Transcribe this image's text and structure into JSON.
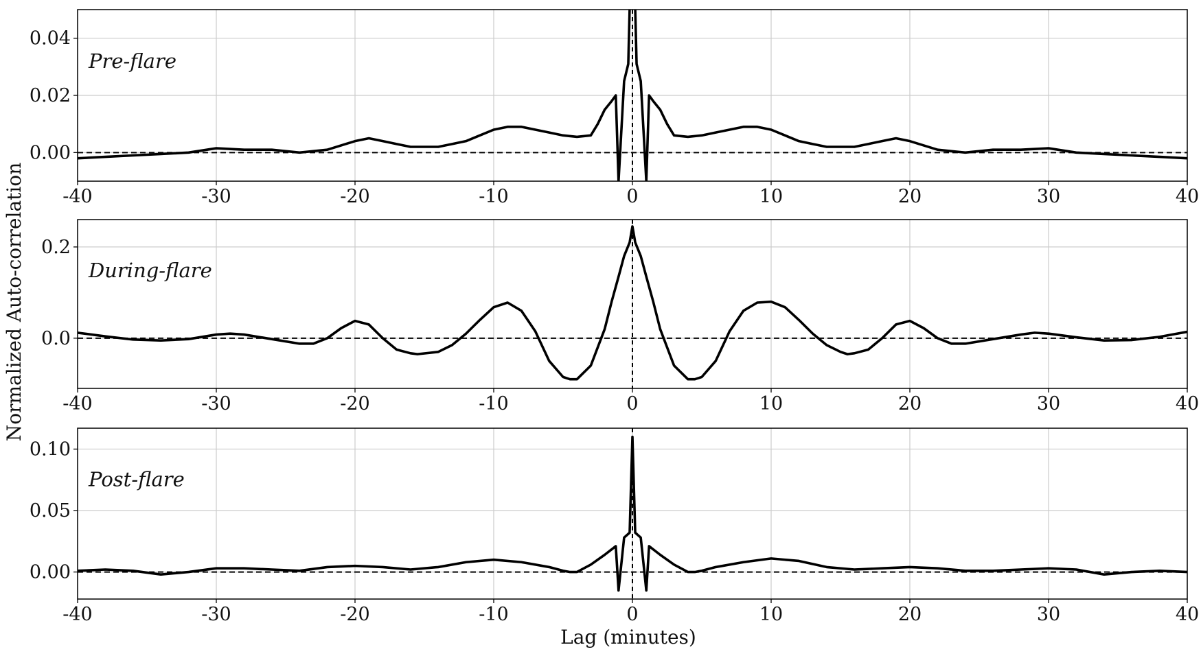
{
  "chart_data": [
    {
      "type": "line",
      "panel_label": "Pre-flare",
      "xlim": [
        -40,
        40
      ],
      "ylim": [
        -0.01,
        0.05
      ],
      "xticks": [
        -40,
        -30,
        -20,
        -10,
        0,
        10,
        20,
        30,
        40
      ],
      "xtick_labels": [
        "-40",
        "-30",
        "-20",
        "-10",
        "0",
        "10",
        "20",
        "30",
        "40"
      ],
      "yticks": [
        0.0,
        0.02,
        0.04
      ],
      "ytick_labels": [
        "0.00",
        "0.02",
        "0.04"
      ],
      "grid": true,
      "reference_lines": {
        "y": 0,
        "x": 0,
        "style": "dashed"
      },
      "series": [
        {
          "color": "#000000",
          "x": [
            -40,
            -38,
            -36,
            -34,
            -32,
            -30,
            -28,
            -26,
            -24,
            -22,
            -20,
            -19,
            -18,
            -17,
            -16,
            -15,
            -14,
            -13,
            -12,
            -11,
            -10,
            -9,
            -8,
            -7,
            -6,
            -5,
            -4,
            -3,
            -2.5,
            -2,
            -1.5,
            -1.2,
            -1.0,
            -0.6,
            -0.3,
            -0.15,
            0,
            0.15,
            0.3,
            0.6,
            1.0,
            1.2,
            1.5,
            2,
            2.5,
            3,
            4,
            5,
            6,
            7,
            8,
            9,
            10,
            11,
            12,
            13,
            14,
            15,
            16,
            17,
            18,
            19,
            20,
            22,
            24,
            26,
            28,
            30,
            32,
            34,
            36,
            38,
            40
          ],
          "y": [
            -0.002,
            -0.0015,
            -0.001,
            -0.0005,
            0.0,
            0.0015,
            0.001,
            0.001,
            0.0,
            0.001,
            0.004,
            0.005,
            0.004,
            0.003,
            0.002,
            0.002,
            0.002,
            0.003,
            0.004,
            0.006,
            0.008,
            0.009,
            0.009,
            0.008,
            0.007,
            0.006,
            0.0055,
            0.006,
            0.01,
            0.015,
            0.018,
            0.02,
            -0.01,
            0.025,
            0.031,
            0.06,
            0.085,
            0.06,
            0.031,
            0.025,
            -0.01,
            0.02,
            0.018,
            0.015,
            0.01,
            0.006,
            0.0055,
            0.006,
            0.007,
            0.008,
            0.009,
            0.009,
            0.008,
            0.006,
            0.004,
            0.003,
            0.002,
            0.002,
            0.002,
            0.003,
            0.004,
            0.005,
            0.004,
            0.001,
            0.0,
            0.001,
            0.001,
            0.0015,
            0.0,
            -0.0005,
            -0.001,
            -0.0015,
            -0.002
          ]
        }
      ]
    },
    {
      "type": "line",
      "panel_label": "During-flare",
      "xlim": [
        -40,
        40
      ],
      "ylim": [
        -0.11,
        0.26
      ],
      "xticks": [
        -40,
        -30,
        -20,
        -10,
        0,
        10,
        20,
        30,
        40
      ],
      "xtick_labels": [
        "-40",
        "-30",
        "-20",
        "-10",
        "0",
        "10",
        "20",
        "30",
        "40"
      ],
      "yticks": [
        0.0,
        0.2
      ],
      "ytick_labels": [
        "0.0",
        "0.2"
      ],
      "grid": true,
      "reference_lines": {
        "y": 0,
        "x": 0,
        "style": "dashed"
      },
      "series": [
        {
          "color": "#000000",
          "x": [
            -40,
            -38,
            -36,
            -34,
            -32,
            -30,
            -29,
            -28,
            -26,
            -24,
            -23,
            -22,
            -21,
            -20,
            -19,
            -18,
            -17,
            -16,
            -15.5,
            -14,
            -13,
            -12,
            -11,
            -10,
            -9,
            -8,
            -7,
            -6,
            -5,
            -4.5,
            -4,
            -3,
            -2,
            -1.5,
            -1,
            -0.6,
            -0.2,
            0,
            0.2,
            0.6,
            1,
            1.5,
            2,
            3,
            4,
            4.5,
            5,
            6,
            7,
            8,
            9,
            10,
            11,
            12,
            13,
            14,
            15,
            15.5,
            16,
            17,
            18,
            19,
            20,
            21,
            22,
            23,
            24,
            26,
            28,
            29,
            30,
            32,
            34,
            36,
            38,
            40
          ],
          "y": [
            0.012,
            0.004,
            -0.003,
            -0.005,
            -0.002,
            0.008,
            0.01,
            0.008,
            -0.002,
            -0.012,
            -0.012,
            0.0,
            0.022,
            0.038,
            0.03,
            0.0,
            -0.025,
            -0.033,
            -0.035,
            -0.03,
            -0.015,
            0.01,
            0.04,
            0.068,
            0.078,
            0.06,
            0.015,
            -0.05,
            -0.085,
            -0.09,
            -0.09,
            -0.06,
            0.02,
            0.08,
            0.135,
            0.18,
            0.21,
            0.245,
            0.21,
            0.18,
            0.135,
            0.08,
            0.02,
            -0.06,
            -0.09,
            -0.09,
            -0.085,
            -0.05,
            0.015,
            0.06,
            0.078,
            0.08,
            0.068,
            0.04,
            0.01,
            -0.015,
            -0.03,
            -0.035,
            -0.033,
            -0.025,
            0.0,
            0.03,
            0.038,
            0.022,
            0.0,
            -0.012,
            -0.012,
            -0.002,
            0.008,
            0.012,
            0.01,
            0.002,
            -0.005,
            -0.004,
            0.003,
            0.014
          ]
        }
      ]
    },
    {
      "type": "line",
      "panel_label": "Post-flare",
      "xlim": [
        -40,
        40
      ],
      "ylim": [
        -0.022,
        0.117
      ],
      "xticks": [
        -40,
        -30,
        -20,
        -10,
        0,
        10,
        20,
        30,
        40
      ],
      "xtick_labels": [
        "-40",
        "-30",
        "-20",
        "-10",
        "0",
        "10",
        "20",
        "30",
        "40"
      ],
      "yticks": [
        0.0,
        0.05,
        0.1
      ],
      "ytick_labels": [
        "0.00",
        "0.05",
        "0.10"
      ],
      "grid": true,
      "reference_lines": {
        "y": 0,
        "x": 0,
        "style": "dashed"
      },
      "series": [
        {
          "color": "#000000",
          "x": [
            -40,
            -38,
            -36,
            -34,
            -32,
            -30,
            -28,
            -26,
            -24,
            -22,
            -20,
            -18,
            -16,
            -14,
            -12,
            -10,
            -8,
            -6,
            -5,
            -4.5,
            -4,
            -3,
            -2,
            -1.2,
            -1.0,
            -0.6,
            -0.2,
            0,
            0.2,
            0.6,
            1.0,
            1.2,
            2,
            3,
            4,
            4.5,
            5,
            6,
            8,
            10,
            12,
            14,
            16,
            18,
            20,
            22,
            24,
            26,
            28,
            30,
            32,
            34,
            36,
            38,
            40
          ],
          "y": [
            0.001,
            0.002,
            0.001,
            -0.002,
            0.0,
            0.003,
            0.003,
            0.002,
            0.001,
            0.004,
            0.005,
            0.004,
            0.002,
            0.004,
            0.008,
            0.01,
            0.008,
            0.004,
            0.001,
            0.0,
            0.0,
            0.006,
            0.014,
            0.021,
            -0.015,
            0.028,
            0.032,
            0.11,
            0.032,
            0.028,
            -0.015,
            0.021,
            0.014,
            0.006,
            0.0,
            0.0,
            0.001,
            0.004,
            0.008,
            0.011,
            0.009,
            0.004,
            0.002,
            0.003,
            0.004,
            0.003,
            0.001,
            0.001,
            0.002,
            0.003,
            0.002,
            -0.002,
            0.0,
            0.001,
            0.0
          ]
        }
      ]
    }
  ],
  "ylabel": "Normalized Auto-correlation",
  "xlabel": "Lag (minutes)"
}
